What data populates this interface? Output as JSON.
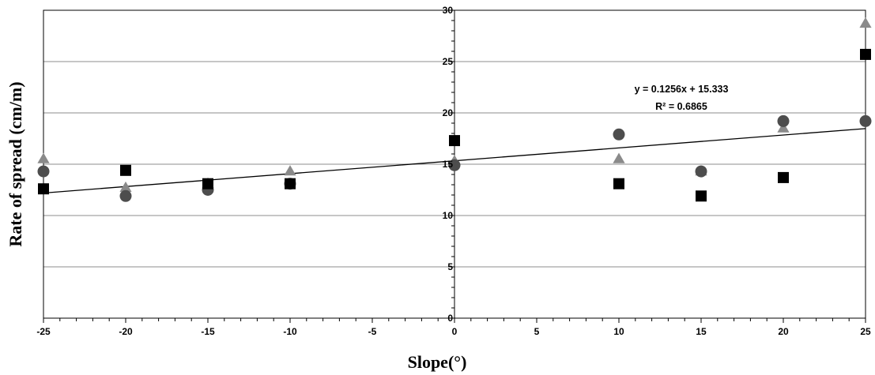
{
  "chart_data": {
    "type": "scatter",
    "title": "",
    "xlabel": "Slope(°)",
    "ylabel": "Rate of spread  (cm/m)",
    "xlim": [
      -25,
      25
    ],
    "ylim": [
      0,
      30
    ],
    "x_ticks": [
      "-25",
      "-20",
      "-15",
      "-10",
      "-5",
      "0",
      "5",
      "10",
      "15",
      "20",
      "25"
    ],
    "y_ticks": [
      "0",
      "5",
      "10",
      "15",
      "20",
      "25",
      "30"
    ],
    "grid": "horizontal",
    "series": [
      {
        "marker": "triangle",
        "color": "#8a8a8a",
        "x": [
          -25,
          -20,
          -15,
          -10,
          0,
          10,
          15,
          20,
          25
        ],
        "y": [
          15.5,
          12.7,
          13.1,
          14.3,
          15.3,
          15.5,
          14.3,
          18.5,
          28.7
        ]
      },
      {
        "marker": "circle",
        "color": "#4d4d4d",
        "x": [
          -25,
          -20,
          -15,
          -10,
          0,
          10,
          15,
          20,
          25
        ],
        "y": [
          14.3,
          11.9,
          12.5,
          13.1,
          14.9,
          17.9,
          14.3,
          19.2,
          19.2
        ]
      },
      {
        "marker": "square",
        "color": "#000000",
        "x": [
          -25,
          -20,
          -15,
          -10,
          0,
          10,
          15,
          20,
          25
        ],
        "y": [
          12.6,
          14.4,
          13.1,
          13.1,
          17.3,
          13.1,
          11.9,
          13.7,
          25.7
        ]
      }
    ],
    "trendline": {
      "slope": 0.1256,
      "intercept": 15.333,
      "equation": "y = 0.1256x + 15.333",
      "r2": "R² = 0.6865",
      "color": "#000000"
    }
  }
}
